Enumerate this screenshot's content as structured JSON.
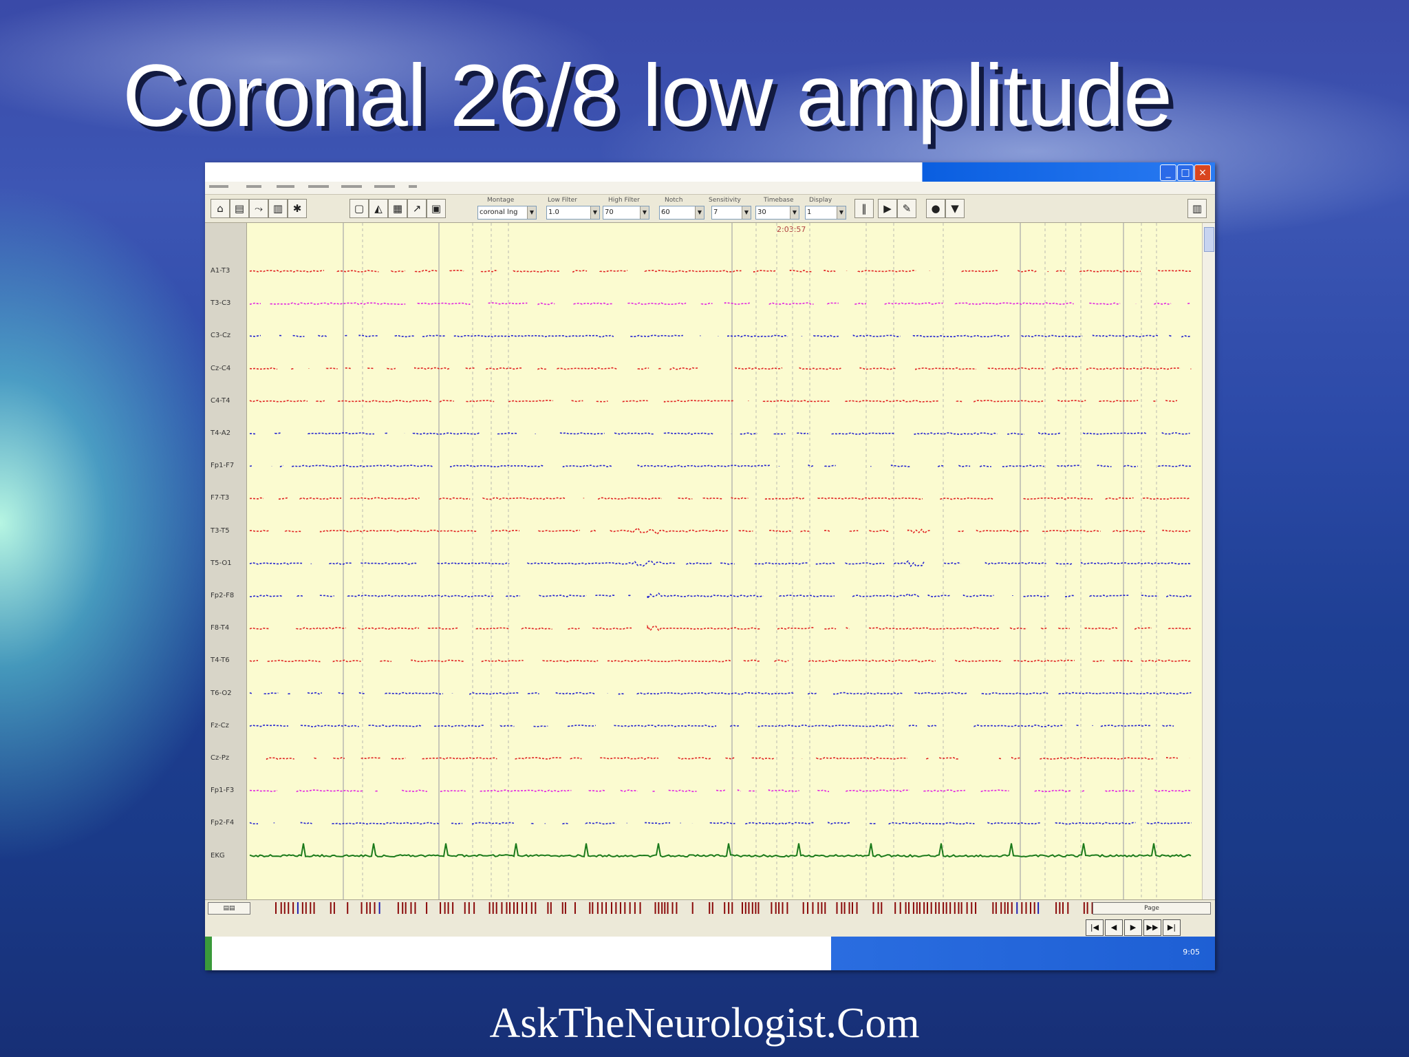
{
  "slide": {
    "title": "Coronal 26/8 low amplitude",
    "footer": "AskTheNeurologist.Com"
  },
  "toolbar": {
    "combos": [
      {
        "label": "Montage",
        "value": "coronal lng"
      },
      {
        "label": "Low Filter",
        "value": "1.0"
      },
      {
        "label": "High Filter",
        "value": "70"
      },
      {
        "label": "Notch",
        "value": "60"
      },
      {
        "label": "Sensitivity",
        "value": "7"
      },
      {
        "label": "Timebase",
        "value": "30"
      },
      {
        "label": "Display",
        "value": "1"
      }
    ]
  },
  "eeg": {
    "timestamp": "2:03:57",
    "channels": [
      {
        "label": "A1-T3",
        "color": "#e02020"
      },
      {
        "label": "T3-C3",
        "color": "#e020e0"
      },
      {
        "label": "C3-Cz",
        "color": "#2020d0"
      },
      {
        "label": "Cz-C4",
        "color": "#e02020"
      },
      {
        "label": "C4-T4",
        "color": "#e02020"
      },
      {
        "label": "T4-A2",
        "color": "#2020d0"
      },
      {
        "label": "Fp1-F7",
        "color": "#2020d0"
      },
      {
        "label": "F7-T3",
        "color": "#e02020"
      },
      {
        "label": "T3-T5",
        "color": "#e02020"
      },
      {
        "label": "T5-O1",
        "color": "#2020d0"
      },
      {
        "label": "Fp2-F8",
        "color": "#2020d0"
      },
      {
        "label": "F8-T4",
        "color": "#e02020"
      },
      {
        "label": "T4-T6",
        "color": "#e02020"
      },
      {
        "label": "T6-O2",
        "color": "#2020d0"
      },
      {
        "label": "Fz-Cz",
        "color": "#2020d0"
      },
      {
        "label": "Cz-Pz",
        "color": "#e02020"
      },
      {
        "label": "Fp1-F3",
        "color": "#e020e0"
      },
      {
        "label": "Fp2-F4",
        "color": "#2020d0"
      },
      {
        "label": "EKG",
        "color": "#1a7a1a"
      }
    ]
  },
  "bottom": {
    "page_label": "Page",
    "tray": "9:05"
  }
}
